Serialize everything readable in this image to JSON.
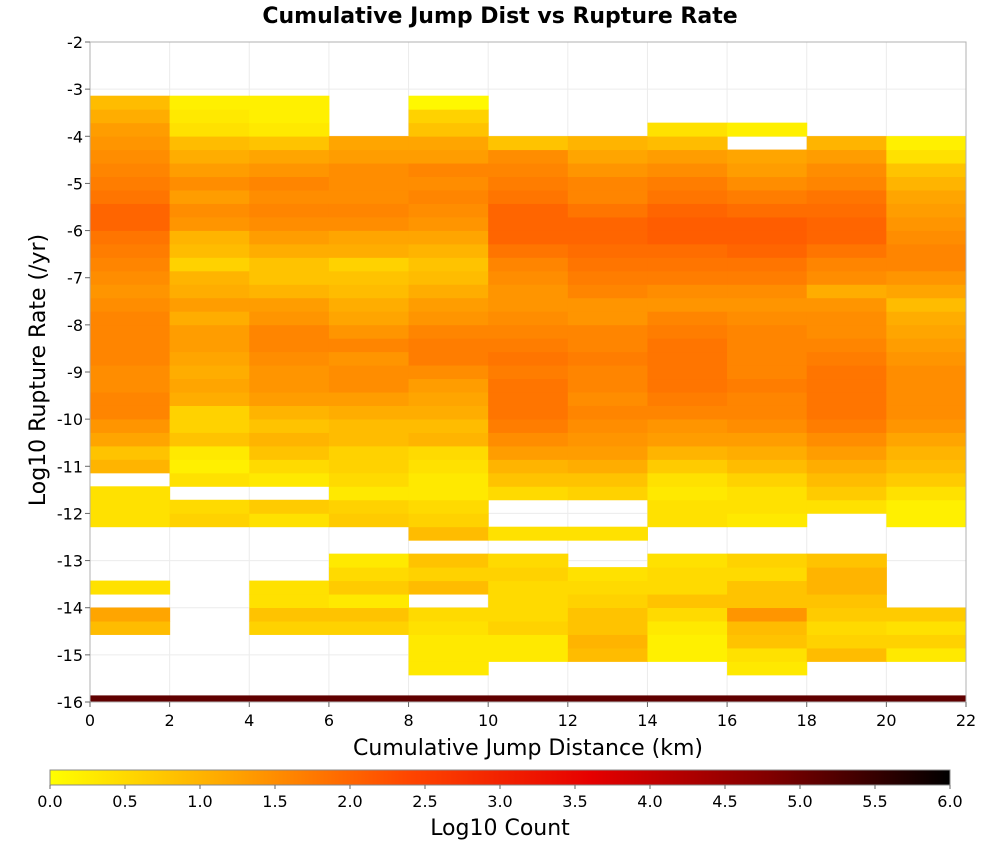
{
  "chart_data": {
    "type": "heatmap",
    "title": "Cumulative Jump Dist vs Rupture Rate",
    "xlabel": "Cumulative Jump Distance (km)",
    "ylabel": "Log10 Rupture Rate (/yr)",
    "xlim": [
      0,
      22
    ],
    "ylim": [
      -16,
      -2
    ],
    "xticks": [
      "0",
      "2",
      "4",
      "6",
      "8",
      "10",
      "12",
      "14",
      "16",
      "18",
      "20",
      "22"
    ],
    "yticks": [
      "-2",
      "-3",
      "-4",
      "-5",
      "-6",
      "-7",
      "-8",
      "-9",
      "-10",
      "-11",
      "-12",
      "-13",
      "-14",
      "-15",
      "-16"
    ],
    "x_bin_width_km": 2,
    "y_bin_height_log10": 0.2857,
    "y_bin_lower_edge": -15.71,
    "grid": true,
    "colorbar": {
      "label": "Log10 Count",
      "range": [
        0,
        6
      ],
      "ticks": [
        "0.0",
        "0.5",
        "1.0",
        "1.5",
        "2.0",
        "2.5",
        "3.0",
        "3.5",
        "4.0",
        "4.5",
        "5.0",
        "5.5",
        "6.0"
      ],
      "colors": [
        "#ffff00",
        "#ffa500",
        "#ff4500",
        "#e60000",
        "#800000",
        "#000000"
      ]
    },
    "bottom_row": {
      "y_range": [
        -16,
        -15.86
      ],
      "value": 5.1
    },
    "columns": [
      {
        "x_range": [
          0,
          2
        ],
        "values": [
          null,
          null,
          null,
          null,
          0.9,
          1.2,
          null,
          0.4,
          null,
          null,
          null,
          null,
          0.4,
          0.4,
          0.4,
          null,
          1.0,
          0.8,
          1.2,
          1.4,
          1.6,
          1.6,
          1.5,
          1.5,
          1.6,
          1.6,
          1.6,
          1.6,
          1.5,
          1.4,
          1.5,
          1.6,
          1.7,
          1.8,
          2.0,
          2.0,
          1.8,
          1.7,
          1.6,
          1.5,
          1.4,
          1.3,
          1.1,
          0.9
        ]
      },
      {
        "x_range": [
          2,
          4
        ],
        "values": [
          null,
          null,
          null,
          null,
          null,
          null,
          null,
          null,
          null,
          null,
          null,
          null,
          0.6,
          0.5,
          null,
          0.4,
          0.2,
          0.3,
          0.8,
          0.6,
          0.6,
          1.1,
          1.2,
          1.1,
          1.2,
          1.3,
          1.3,
          1.1,
          1.3,
          1.1,
          1.0,
          0.6,
          0.9,
          1.0,
          1.4,
          1.5,
          1.3,
          1.5,
          1.3,
          1.1,
          0.9,
          0.4,
          0.3,
          0.2
        ]
      },
      {
        "x_range": [
          4,
          6
        ],
        "values": [
          null,
          null,
          null,
          null,
          0.6,
          0.8,
          0.4,
          0.4,
          null,
          null,
          null,
          null,
          0.4,
          0.7,
          null,
          0.3,
          0.5,
          0.8,
          1.0,
          0.8,
          1.0,
          1.3,
          1.4,
          1.4,
          1.5,
          1.6,
          1.6,
          1.4,
          1.3,
          1.0,
          0.8,
          0.8,
          1.1,
          1.3,
          1.5,
          1.6,
          1.5,
          1.6,
          1.4,
          1.2,
          0.8,
          0.3,
          0.2,
          0.2
        ]
      },
      {
        "x_range": [
          6,
          8
        ],
        "values": [
          null,
          null,
          null,
          null,
          0.6,
          0.8,
          0.3,
          0.7,
          0.5,
          0.3,
          null,
          null,
          0.7,
          0.6,
          0.3,
          0.5,
          0.6,
          0.6,
          0.9,
          0.9,
          1.1,
          1.3,
          1.5,
          1.5,
          1.4,
          1.6,
          1.4,
          1.2,
          1.1,
          0.9,
          0.8,
          0.6,
          1.1,
          1.2,
          1.5,
          1.6,
          1.5,
          1.5,
          1.5,
          1.3,
          1.2,
          null,
          null,
          null
        ]
      },
      {
        "x_range": [
          8,
          10
        ],
        "values": [
          null,
          0.3,
          0.3,
          0.3,
          0.4,
          0.5,
          null,
          0.9,
          0.6,
          0.8,
          null,
          0.9,
          0.6,
          0.5,
          0.3,
          0.3,
          0.4,
          0.5,
          1.0,
          0.9,
          1.1,
          1.2,
          1.3,
          1.5,
          1.7,
          1.7,
          1.6,
          1.4,
          1.3,
          1.1,
          0.9,
          0.8,
          1.0,
          1.2,
          1.4,
          1.5,
          1.6,
          1.5,
          1.6,
          1.3,
          1.2,
          0.8,
          0.6,
          0.1
        ]
      },
      {
        "x_range": [
          10,
          12
        ],
        "values": [
          null,
          null,
          0.3,
          0.3,
          0.6,
          0.5,
          0.5,
          0.5,
          0.6,
          0.5,
          null,
          0.4,
          null,
          null,
          0.5,
          0.8,
          1.0,
          1.3,
          1.5,
          1.7,
          1.8,
          1.8,
          1.8,
          1.7,
          1.8,
          1.7,
          1.6,
          1.5,
          1.4,
          1.4,
          1.5,
          1.6,
          1.8,
          2.0,
          2.0,
          2.0,
          1.8,
          1.7,
          1.6,
          1.5,
          0.8,
          null,
          null,
          null
        ]
      },
      {
        "x_range": [
          12,
          14
        ],
        "values": [
          null,
          null,
          0.9,
          1.0,
          0.8,
          0.8,
          0.6,
          0.5,
          0.4,
          null,
          null,
          0.4,
          null,
          null,
          0.6,
          0.8,
          1.1,
          1.3,
          1.4,
          1.5,
          1.6,
          1.5,
          1.6,
          1.6,
          1.7,
          1.6,
          1.6,
          1.4,
          1.4,
          1.6,
          1.7,
          1.8,
          1.9,
          2.0,
          2.0,
          1.8,
          1.6,
          1.6,
          1.4,
          1.2,
          1.0,
          null,
          null,
          null
        ]
      },
      {
        "x_range": [
          14,
          16
        ],
        "values": [
          null,
          null,
          0.2,
          0.2,
          0.3,
          0.5,
          0.8,
          0.5,
          0.5,
          0.4,
          null,
          null,
          0.4,
          0.4,
          0.3,
          0.4,
          0.7,
          1.0,
          1.3,
          1.4,
          1.6,
          1.7,
          1.8,
          1.8,
          1.8,
          1.8,
          1.7,
          1.6,
          1.4,
          1.5,
          1.7,
          1.8,
          1.9,
          2.1,
          2.1,
          2.0,
          1.8,
          1.7,
          1.5,
          1.3,
          0.9,
          0.4,
          null,
          null
        ]
      },
      {
        "x_range": [
          16,
          18
        ],
        "values": [
          null,
          0.3,
          0.4,
          0.8,
          0.9,
          1.4,
          0.8,
          0.8,
          0.5,
          0.6,
          null,
          null,
          0.3,
          0.4,
          0.4,
          0.6,
          0.9,
          1.1,
          1.3,
          1.5,
          1.6,
          1.6,
          1.7,
          1.6,
          1.6,
          1.6,
          1.6,
          1.5,
          1.4,
          1.5,
          1.7,
          1.8,
          2.0,
          2.1,
          2.1,
          1.9,
          1.7,
          1.5,
          1.3,
          1.2,
          null,
          0.2,
          null,
          null
        ]
      },
      {
        "x_range": [
          18,
          20
        ],
        "values": [
          null,
          null,
          0.9,
          0.6,
          0.5,
          0.7,
          0.8,
          1.0,
          1.0,
          0.8,
          null,
          null,
          null,
          0.4,
          0.7,
          0.9,
          1.1,
          1.3,
          1.5,
          1.7,
          1.8,
          1.8,
          1.8,
          1.8,
          1.7,
          1.6,
          1.5,
          1.5,
          1.4,
          1.1,
          1.5,
          1.6,
          1.8,
          2.0,
          2.0,
          1.9,
          1.8,
          1.6,
          1.5,
          1.3,
          1.0,
          null,
          null,
          null
        ]
      },
      {
        "x_range": [
          20,
          22
        ],
        "values": [
          null,
          null,
          0.3,
          0.6,
          0.4,
          0.7,
          null,
          null,
          null,
          null,
          null,
          null,
          0.2,
          0.2,
          0.4,
          0.7,
          0.9,
          1.0,
          1.2,
          1.4,
          1.5,
          1.5,
          1.5,
          1.5,
          1.4,
          1.3,
          1.2,
          1.1,
          0.9,
          1.2,
          1.4,
          1.6,
          1.6,
          1.5,
          1.4,
          1.3,
          1.2,
          1.0,
          0.8,
          0.4,
          0.2,
          null,
          null,
          null
        ]
      }
    ]
  }
}
